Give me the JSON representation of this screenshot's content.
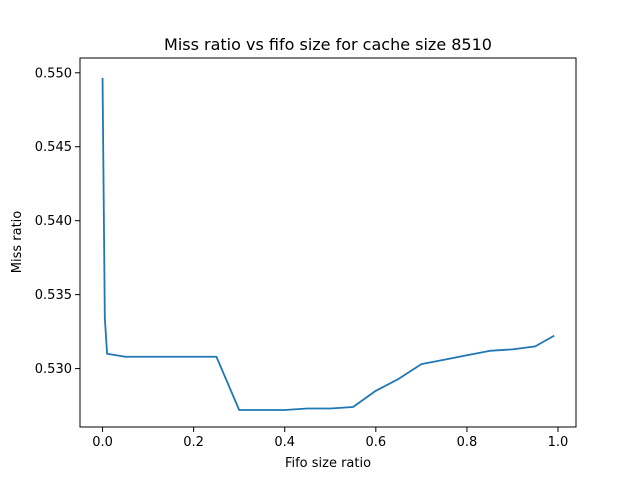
{
  "chart_data": {
    "type": "line",
    "title": "Miss ratio vs fifo size for cache size 8510",
    "xlabel": "Fifo size ratio",
    "ylabel": "Miss ratio",
    "xlim": [
      -0.0495,
      1.0395
    ],
    "ylim": [
      0.52605,
      0.551
    ],
    "xticks": [
      0.0,
      0.2,
      0.4,
      0.6,
      0.8,
      1.0
    ],
    "xtick_labels": [
      "0.0",
      "0.2",
      "0.4",
      "0.6",
      "0.8",
      "1.0"
    ],
    "yticks": [
      0.53,
      0.535,
      0.54,
      0.545,
      0.55
    ],
    "ytick_labels": [
      "0.530",
      "0.535",
      "0.540",
      "0.545",
      "0.550"
    ],
    "grid": false,
    "series": [
      {
        "color": "#1f77b4",
        "x": [
          0.0,
          0.005,
          0.01,
          0.05,
          0.1,
          0.15,
          0.2,
          0.25,
          0.3,
          0.35,
          0.4,
          0.45,
          0.5,
          0.55,
          0.6,
          0.65,
          0.7,
          0.75,
          0.8,
          0.85,
          0.9,
          0.95,
          0.99
        ],
        "y": [
          0.5496,
          0.5334,
          0.531,
          0.5308,
          0.5308,
          0.5308,
          0.5308,
          0.5308,
          0.5272,
          0.5272,
          0.5272,
          0.5273,
          0.5273,
          0.5274,
          0.5285,
          0.5293,
          0.5303,
          0.5306,
          0.5309,
          0.5312,
          0.5313,
          0.5315,
          0.5322
        ]
      }
    ]
  }
}
